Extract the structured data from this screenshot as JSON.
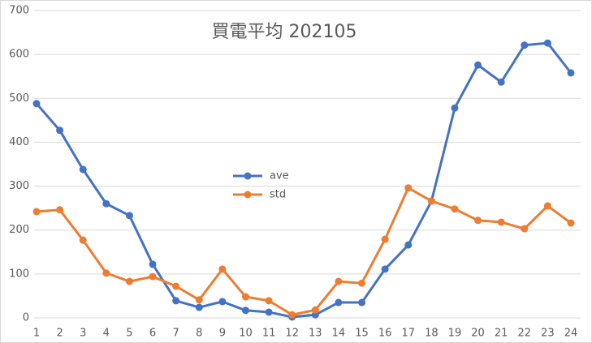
{
  "chart_data": {
    "type": "line",
    "title": "買電平均 202105",
    "categories": [
      "1",
      "2",
      "3",
      "4",
      "5",
      "6",
      "7",
      "8",
      "9",
      "10",
      "11",
      "12",
      "13",
      "14",
      "15",
      "16",
      "17",
      "18",
      "19",
      "20",
      "21",
      "22",
      "23",
      "24"
    ],
    "series": [
      {
        "name": "ave",
        "color": "#4472c4",
        "values": [
          488,
          427,
          338,
          260,
          233,
          122,
          39,
          24,
          37,
          17,
          13,
          2,
          7,
          35,
          35,
          111,
          166,
          266,
          478,
          576,
          537,
          621,
          626,
          558
        ]
      },
      {
        "name": "std",
        "color": "#ed7d31",
        "values": [
          242,
          246,
          177,
          102,
          83,
          94,
          72,
          41,
          111,
          48,
          39,
          7,
          18,
          83,
          79,
          179,
          296,
          266,
          248,
          222,
          218,
          203,
          255,
          216
        ]
      }
    ],
    "ylim": [
      0,
      700
    ],
    "yticks": [
      0,
      100,
      200,
      300,
      400,
      500,
      600,
      700
    ],
    "grid": true,
    "legend": "center-left"
  }
}
